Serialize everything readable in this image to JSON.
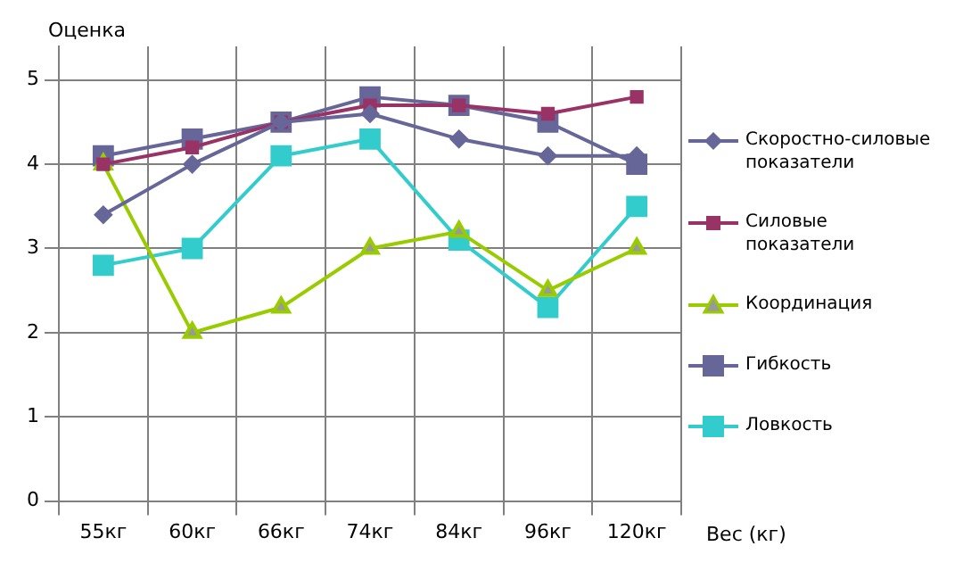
{
  "chart_data": {
    "type": "line",
    "ylabel": "Оценка",
    "xlabel": "Вес (кг)",
    "categories": [
      "55кг",
      "60кг",
      "66кг",
      "74кг",
      "84кг",
      "96кг",
      "120кг"
    ],
    "series": [
      {
        "name": "Скоростно-силовые показатели",
        "color": "#666699",
        "marker": "diamond",
        "values": [
          3.4,
          4.0,
          4.5,
          4.6,
          4.3,
          4.1,
          4.1
        ]
      },
      {
        "name": "Силовые показатели",
        "color": "#993366",
        "marker": "square",
        "values": [
          4.0,
          4.2,
          4.5,
          4.7,
          4.7,
          4.6,
          4.8
        ]
      },
      {
        "name": "Координация",
        "color": "#99cc00",
        "marker": "triangle",
        "values": [
          4.0,
          2.0,
          2.3,
          3.0,
          3.2,
          2.5,
          3.0
        ]
      },
      {
        "name": "Гибкость",
        "color": "#666699",
        "marker": "square",
        "values": [
          4.1,
          4.3,
          4.5,
          4.8,
          4.7,
          4.5,
          4.0
        ]
      },
      {
        "name": "Ловкость",
        "color": "#33cccc",
        "marker": "square",
        "values": [
          2.8,
          3.0,
          4.1,
          4.3,
          3.1,
          2.3,
          3.5
        ]
      }
    ],
    "ylim": [
      0,
      5.4
    ],
    "yticks": [
      0,
      1,
      2,
      3,
      4,
      5
    ],
    "grid": true,
    "legend": "right"
  }
}
